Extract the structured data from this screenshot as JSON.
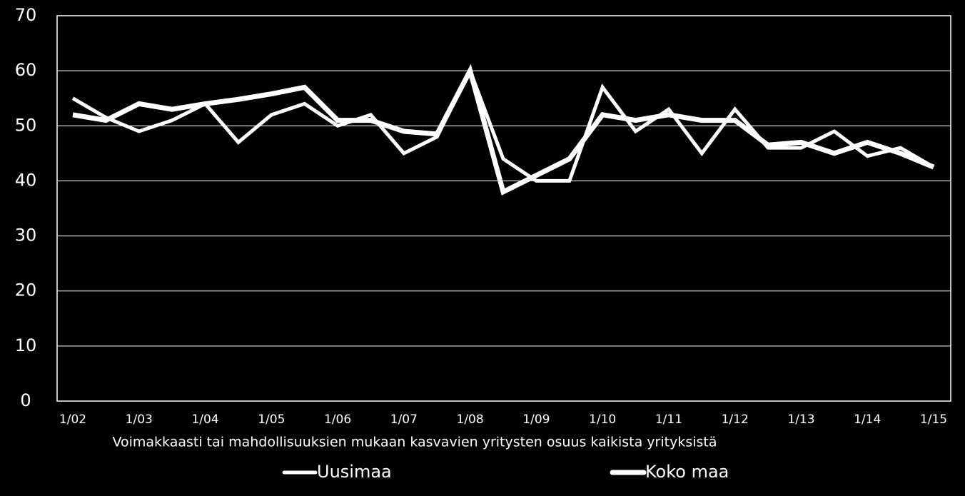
{
  "chart_data": {
    "type": "line",
    "x_label": "Voimakkaasti tai mahdollisuuksien mukaan kasvavien yritysten osuus kaikista yrityksistä",
    "categories": [
      "1/02",
      null,
      "1/03",
      null,
      "1/04",
      null,
      "1/05",
      null,
      "1/06",
      null,
      "1/07",
      null,
      "1/08",
      null,
      "1/09",
      null,
      "1/10",
      null,
      "1/11",
      null,
      "1/12",
      null,
      "1/13",
      null,
      "1/14",
      null,
      "1/15"
    ],
    "series": [
      {
        "name": "Uusimaa",
        "color": "#ffffff",
        "values": [
          55,
          51.5,
          49,
          51,
          54,
          47,
          52,
          54,
          50,
          52,
          45,
          48,
          60,
          44,
          40,
          40,
          57,
          49,
          53,
          45,
          53,
          46,
          46,
          49,
          44.5,
          46,
          42.5
        ]
      },
      {
        "name": "Koko maa",
        "color": "#ffffff",
        "values": [
          52,
          51,
          54,
          53,
          54,
          54.8,
          55.8,
          57,
          51,
          51,
          49,
          48.5,
          60,
          38,
          41,
          44,
          52,
          51,
          52,
          51,
          51,
          46.5,
          47,
          45,
          47,
          45,
          42.5
        ]
      }
    ],
    "ylim": [
      0,
      70
    ],
    "yticks": [
      0,
      10,
      20,
      30,
      40,
      50,
      60,
      70
    ],
    "grid": true
  }
}
